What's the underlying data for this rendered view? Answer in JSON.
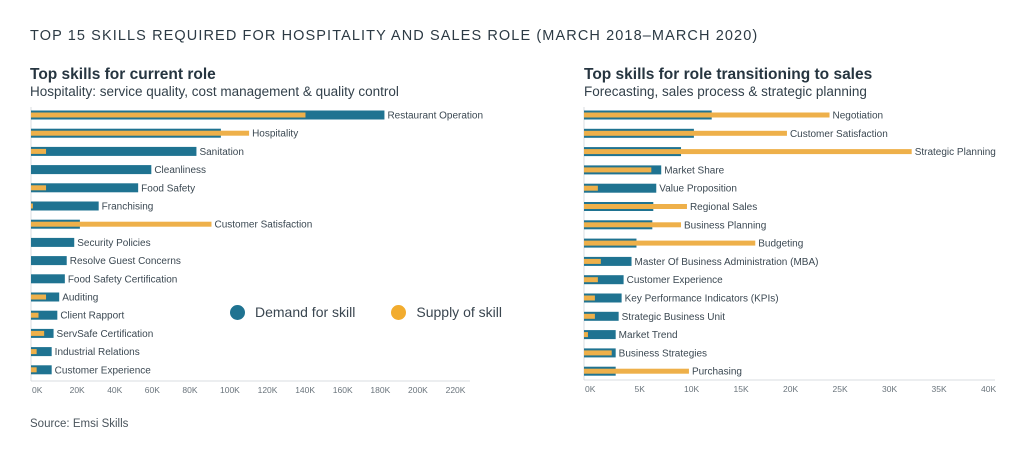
{
  "title": "TOP 15 SKILLS REQUIRED FOR HOSPITALITY AND SALES ROLE (MARCH 2018–MARCH 2020)",
  "source": "Source: Emsi Skills",
  "colors": {
    "demand": "#1f7391",
    "supply": "#eeb04a",
    "axis": "#d9dde0"
  },
  "legend": [
    {
      "label": "Demand for skill",
      "color": "#1f7391"
    },
    {
      "label": "Supply of skill",
      "color": "#f2ac2e"
    }
  ],
  "chart_data": [
    {
      "type": "bar",
      "orientation": "horizontal",
      "title": "Top skills for current role",
      "subtitle": "Hospitality: service quality, cost management & quality control",
      "xlabel": "",
      "ylabel": "",
      "xlim": [
        0,
        230000
      ],
      "ticks": [
        0,
        20000,
        40000,
        60000,
        80000,
        100000,
        120000,
        140000,
        160000,
        180000,
        200000,
        220000
      ],
      "tick_labels": [
        "0K",
        "20K",
        "40K",
        "60K",
        "80K",
        "100K",
        "120K",
        "140K",
        "160K",
        "180K",
        "200K",
        "220K"
      ],
      "categories": [
        "Restaurant Operation",
        "Hospitality",
        "Sanitation",
        "Cleanliness",
        "Food Safety",
        "Franchising",
        "Customer Satisfaction",
        "Security Policies",
        "Resolve Guest Concerns",
        "Food Safety Certification",
        "Auditing",
        "Client Rapport",
        "ServSafe Certification",
        "Industrial Relations",
        "Customer Experience"
      ],
      "series": [
        {
          "name": "Demand for skill",
          "values": [
            188000,
            101000,
            88000,
            64000,
            57000,
            36000,
            26000,
            23000,
            19000,
            18000,
            15000,
            14000,
            12000,
            11000,
            11000
          ]
        },
        {
          "name": "Supply of skill",
          "values": [
            146000,
            116000,
            8000,
            0,
            8000,
            1000,
            96000,
            0,
            0,
            0,
            8000,
            4000,
            7000,
            3000,
            3000
          ]
        }
      ],
      "legend": "center-right"
    },
    {
      "type": "bar",
      "orientation": "horizontal",
      "title": "Top skills for role transitioning to sales",
      "subtitle": "Forecasting, sales process & strategic planning",
      "xlabel": "",
      "ylabel": "",
      "xlim": [
        0,
        41000
      ],
      "ticks": [
        0,
        5000,
        10000,
        15000,
        20000,
        25000,
        30000,
        35000,
        40000
      ],
      "tick_labels": [
        "0K",
        "5K",
        "10K",
        "15K",
        "20K",
        "25K",
        "30K",
        "35K",
        "40K"
      ],
      "categories": [
        "Negotiation",
        "Customer Satisfaction",
        "Strategic Planning",
        "Market Share",
        "Value Proposition",
        "Regional Sales",
        "Business Planning",
        "Budgeting",
        "Master Of Business Administration (MBA)",
        "Customer Experience",
        "Key Performance Indicators (KPIs)",
        "Strategic Business Unit",
        "Market Trend",
        "Business Strategies",
        "Purchasing"
      ],
      "series": [
        {
          "name": "Demand for skill",
          "values": [
            12900,
            11100,
            9800,
            7800,
            7300,
            7000,
            6900,
            5300,
            4800,
            4000,
            3800,
            3500,
            3200,
            3200,
            3200
          ]
        },
        {
          "name": "Supply of skill",
          "values": [
            24800,
            20500,
            33100,
            6800,
            1400,
            10400,
            9800,
            17300,
            1700,
            1400,
            1100,
            1100,
            400,
            2800,
            10600
          ]
        }
      ]
    }
  ]
}
